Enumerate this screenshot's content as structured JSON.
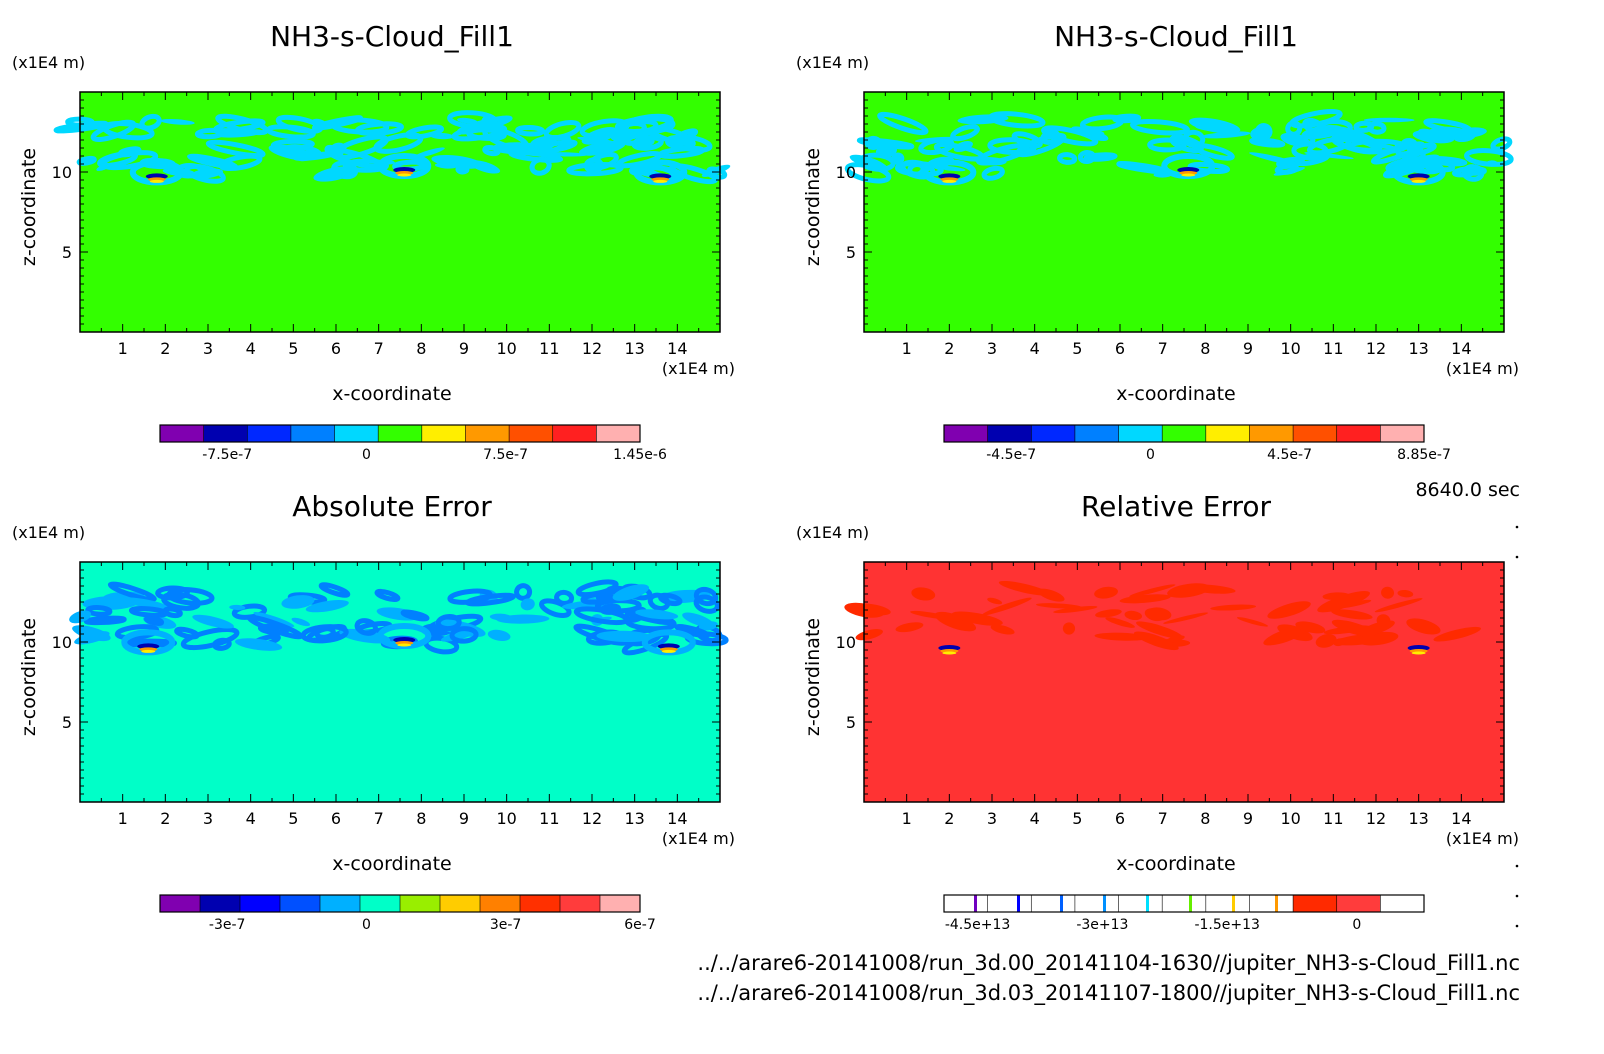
{
  "time_label": "8640.0 sec",
  "file_lines": [
    "../../arare6-20141008/run_3d.00_20141104-1630//jupiter_NH3-s-Cloud_Fill1.nc",
    "../../arare6-20141008/run_3d.03_20141107-1800//jupiter_NH3-s-Cloud_Fill1.nc"
  ],
  "chart_data": [
    {
      "type": "heatmap",
      "title": "NH3-s-Cloud_Fill1",
      "xlabel": "x-coordinate",
      "ylabel": "z-coordinate",
      "x_unit": "(x1E4 m)",
      "y_unit": "(x1E4 m)",
      "xlim": [
        0,
        15
      ],
      "ylim": [
        0,
        15
      ],
      "x_ticks": [
        1,
        2,
        3,
        4,
        5,
        6,
        7,
        8,
        9,
        10,
        11,
        12,
        13,
        14
      ],
      "y_ticks": [
        5,
        10
      ],
      "background_color": "#33ff00",
      "blobs": [
        {
          "x": 1.8,
          "z": 9.6,
          "description": "sharp dipole"
        },
        {
          "x": 7.6,
          "z": 10.0,
          "description": "sharp dipole"
        },
        {
          "x": 13.6,
          "z": 9.6,
          "description": "sharp dipole"
        }
      ],
      "colorbar": {
        "colors": [
          "#8000b0",
          "#0000b0",
          "#0028ff",
          "#0080ff",
          "#00d8ff",
          "#33ff00",
          "#ffee00",
          "#ff9900",
          "#ff5000",
          "#ff2020",
          "#ffb0b0"
        ],
        "tick_labels": [
          "-7.5e-7",
          "0",
          "7.5e-7",
          "1.45e-6"
        ]
      }
    },
    {
      "type": "heatmap",
      "title": "NH3-s-Cloud_Fill1",
      "xlabel": "x-coordinate",
      "ylabel": "z-coordinate",
      "x_unit": "(x1E4 m)",
      "y_unit": "(x1E4 m)",
      "xlim": [
        0,
        15
      ],
      "ylim": [
        0,
        15
      ],
      "x_ticks": [
        1,
        2,
        3,
        4,
        5,
        6,
        7,
        8,
        9,
        10,
        11,
        12,
        13,
        14
      ],
      "y_ticks": [
        5,
        10
      ],
      "background_color": "#33ff00",
      "blobs": [
        {
          "x": 2.0,
          "z": 9.6,
          "description": "sharp dipole"
        },
        {
          "x": 7.6,
          "z": 10.0,
          "description": "sharp dipole"
        },
        {
          "x": 13.0,
          "z": 9.6,
          "description": "sharp dipole"
        }
      ],
      "colorbar": {
        "colors": [
          "#8000b0",
          "#0000b0",
          "#0028ff",
          "#0080ff",
          "#00d8ff",
          "#33ff00",
          "#ffee00",
          "#ff9900",
          "#ff5000",
          "#ff2020",
          "#ffb0b0"
        ],
        "tick_labels": [
          "-4.5e-7",
          "0",
          "4.5e-7",
          "8.85e-7"
        ]
      }
    },
    {
      "type": "heatmap",
      "title": "Absolute Error",
      "xlabel": "x-coordinate",
      "ylabel": "z-coordinate",
      "x_unit": "(x1E4 m)",
      "y_unit": "(x1E4 m)",
      "xlim": [
        0,
        15
      ],
      "ylim": [
        0,
        15
      ],
      "x_ticks": [
        1,
        2,
        3,
        4,
        5,
        6,
        7,
        8,
        9,
        10,
        11,
        12,
        13,
        14
      ],
      "y_ticks": [
        5,
        10
      ],
      "background_color": "#00ffc8",
      "blobs": [
        {
          "x": 1.6,
          "z": 9.6,
          "description": "sharp dipole"
        },
        {
          "x": 7.6,
          "z": 10.0,
          "description": "sharp dipole"
        },
        {
          "x": 13.8,
          "z": 9.6,
          "description": "sharp dipole"
        }
      ],
      "colorbar": {
        "colors": [
          "#8000b0",
          "#0000b0",
          "#0000ff",
          "#0050ff",
          "#00b0ff",
          "#00ffc8",
          "#99ee00",
          "#ffcc00",
          "#ff8000",
          "#ff3000",
          "#ff3c3c",
          "#ffb0b0"
        ],
        "tick_labels": [
          "-3e-7",
          "0",
          "3e-7",
          "6e-7"
        ]
      }
    },
    {
      "type": "heatmap",
      "title": "Relative Error",
      "xlabel": "x-coordinate",
      "ylabel": "z-coordinate",
      "x_unit": "(x1E4 m)",
      "y_unit": "(x1E4 m)",
      "xlim": [
        0,
        15
      ],
      "ylim": [
        0,
        15
      ],
      "x_ticks": [
        1,
        2,
        3,
        4,
        5,
        6,
        7,
        8,
        9,
        10,
        11,
        12,
        13,
        14
      ],
      "y_ticks": [
        5,
        10
      ],
      "background_color": "#ff3333",
      "blobs": [
        {
          "x": 2.0,
          "z": 9.5,
          "description": "small dipole"
        },
        {
          "x": 13.0,
          "z": 9.5,
          "description": "small dipole"
        }
      ],
      "colorbar": {
        "colors": [
          "#ffffff",
          "#ffffff",
          "#ffffff",
          "#ffffff",
          "#ffffff",
          "#ffffff",
          "#ffffff",
          "#ffffff",
          "#ff2a00",
          "#ff3c3c",
          "#ffffff"
        ],
        "tick_labels": [
          "-4.5e+13",
          "-3e+13",
          "-1.5e+13",
          "0"
        ]
      }
    }
  ]
}
